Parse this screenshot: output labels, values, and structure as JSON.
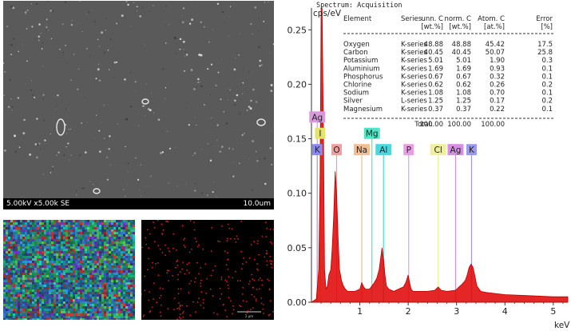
{
  "sem": {
    "info_left": "5.00kV x5.00k SE",
    "info_right": "10.0um"
  },
  "map2": {
    "scale": "2 µm"
  },
  "spectrum_title": "Spectrum: Acquisition",
  "table": {
    "headers": [
      "Element",
      "Series",
      "unn. C",
      "norm. C",
      "Atom. C",
      "Error"
    ],
    "units": [
      "",
      "",
      "[wt.%]",
      "[wt.%]",
      "[at.%]",
      "[%]"
    ],
    "rows": [
      [
        "Oxygen",
        "K-series",
        "48.88",
        "48.88",
        "45.42",
        "17.5"
      ],
      [
        "Carbon",
        "K-series",
        "40.45",
        "40.45",
        "50.07",
        "25.8"
      ],
      [
        "Potassium",
        "K-series",
        "5.01",
        "5.01",
        "1.90",
        "0.3"
      ],
      [
        "Aluminium",
        "K-series",
        "1.69",
        "1.69",
        "0.93",
        "0.1"
      ],
      [
        "Phosphorus",
        "K-series",
        "0.67",
        "0.67",
        "0.32",
        "0.1"
      ],
      [
        "Chlorine",
        "K-series",
        "0.62",
        "0.62",
        "0.26",
        "0.2"
      ],
      [
        "Sodium",
        "K-series",
        "1.08",
        "1.08",
        "0.70",
        "0.1"
      ],
      [
        "Silver",
        "L-series",
        "1.25",
        "1.25",
        "0.17",
        "0.2"
      ],
      [
        "Magnesium",
        "K-series",
        "0.37",
        "0.37",
        "0.22",
        "0.1"
      ]
    ],
    "total_label": "Total:",
    "total": [
      "100.00",
      "100.00",
      "100.00"
    ]
  },
  "chart_data": {
    "type": "line",
    "ylabel": "cps/eV",
    "xlabel": "keV",
    "xlim": [
      0.0,
      5.3
    ],
    "ylim": [
      0.0,
      0.27
    ],
    "xticks": [
      1,
      2,
      3,
      4,
      5
    ],
    "yticks": [
      0.0,
      0.05,
      0.1,
      0.15,
      0.2,
      0.25
    ],
    "ytick_labels": [
      "0.00",
      "0.05",
      "0.10",
      "0.15",
      "0.20",
      "0.25"
    ],
    "line_color": "#e00000",
    "spectrum_x": [
      0.0,
      0.1,
      0.15,
      0.18,
      0.2,
      0.22,
      0.25,
      0.27,
      0.3,
      0.33,
      0.36,
      0.4,
      0.43,
      0.46,
      0.49,
      0.52,
      0.55,
      0.58,
      0.62,
      0.66,
      0.7,
      0.75,
      0.8,
      0.9,
      1.0,
      1.04,
      1.08,
      1.12,
      1.2,
      1.25,
      1.3,
      1.35,
      1.4,
      1.43,
      1.46,
      1.49,
      1.52,
      1.55,
      1.6,
      1.7,
      1.8,
      1.9,
      1.95,
      2.0,
      2.03,
      2.06,
      2.1,
      2.2,
      2.4,
      2.55,
      2.62,
      2.68,
      2.8,
      2.98,
      3.05,
      3.1,
      3.14,
      3.18,
      3.22,
      3.26,
      3.3,
      3.34,
      3.38,
      3.42,
      3.5,
      3.6,
      3.8,
      4.0,
      4.5,
      5.0,
      5.3
    ],
    "spectrum_y": [
      0.0,
      0.003,
      0.03,
      0.12,
      0.27,
      0.27,
      0.15,
      0.03,
      0.012,
      0.015,
      0.025,
      0.03,
      0.05,
      0.08,
      0.12,
      0.1,
      0.06,
      0.03,
      0.02,
      0.015,
      0.012,
      0.01,
      0.01,
      0.01,
      0.012,
      0.018,
      0.014,
      0.012,
      0.012,
      0.015,
      0.018,
      0.022,
      0.03,
      0.04,
      0.05,
      0.04,
      0.025,
      0.015,
      0.012,
      0.01,
      0.012,
      0.014,
      0.018,
      0.025,
      0.018,
      0.012,
      0.01,
      0.01,
      0.01,
      0.011,
      0.014,
      0.011,
      0.01,
      0.011,
      0.014,
      0.016,
      0.018,
      0.02,
      0.025,
      0.032,
      0.035,
      0.032,
      0.024,
      0.015,
      0.01,
      0.009,
      0.008,
      0.007,
      0.006,
      0.005,
      0.005
    ],
    "markers": [
      {
        "label": "K",
        "energy": 0.12,
        "level": 0.14,
        "color": "#8a8aee"
      },
      {
        "label": "Ag",
        "energy": 0.12,
        "level": 0.17,
        "color": "#d79bdc"
      },
      {
        "label": "I",
        "energy": 0.18,
        "level": 0.155,
        "color": "#e4e46a"
      },
      {
        "label": "O",
        "energy": 0.52,
        "level": 0.14,
        "color": "#f29e9e"
      },
      {
        "label": "Na",
        "energy": 1.04,
        "level": 0.14,
        "color": "#f2be92"
      },
      {
        "label": "Mg",
        "energy": 1.25,
        "level": 0.155,
        "color": "#4fe6c5"
      },
      {
        "label": "Al",
        "energy": 1.49,
        "level": 0.14,
        "color": "#49d8dd"
      },
      {
        "label": "P",
        "energy": 2.01,
        "level": 0.14,
        "color": "#e89ee3"
      },
      {
        "label": "Cl",
        "energy": 2.62,
        "level": 0.14,
        "color": "#f1f09a"
      },
      {
        "label": "Ag",
        "energy": 2.98,
        "level": 0.14,
        "color": "#d48fe0"
      },
      {
        "label": "K",
        "energy": 3.31,
        "level": 0.14,
        "color": "#9b99ef"
      }
    ]
  }
}
